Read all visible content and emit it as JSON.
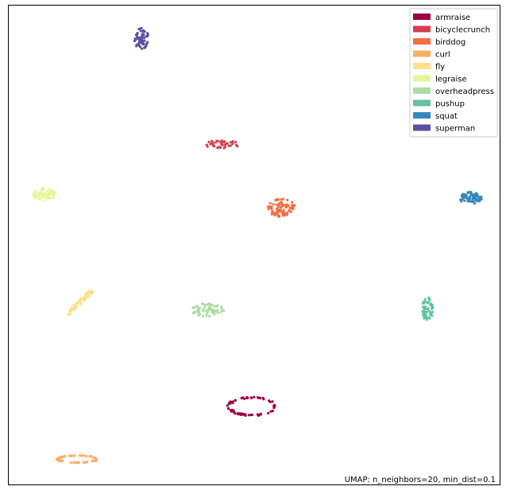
{
  "chart_data": {
    "type": "scatter",
    "title": "",
    "xlabel": "",
    "ylabel": "",
    "xlim": [
      0,
      100
    ],
    "ylim": [
      0,
      100
    ],
    "grid": false,
    "ticks": false,
    "legend_position": "top-right",
    "annotation": "UMAP: n_neighbors=20, min_dist=0.1",
    "series": [
      {
        "name": "armraise",
        "color": "#9e0142",
        "clusters": [
          {
            "shape": "ring",
            "cx": 49.5,
            "cy": 16.3,
            "rx": 5.0,
            "ry": 2.0,
            "n": 70
          }
        ]
      },
      {
        "name": "bicyclecrunch",
        "color": "#d53e4f",
        "clusters": [
          {
            "shape": "blob",
            "cx": 43.5,
            "cy": 71.0,
            "rx": 3.5,
            "ry": 0.9,
            "n": 40
          }
        ]
      },
      {
        "name": "birddog",
        "color": "#f46d43",
        "clusters": [
          {
            "shape": "blob",
            "cx": 55.5,
            "cy": 57.8,
            "rx": 2.8,
            "ry": 1.9,
            "n": 80
          }
        ]
      },
      {
        "name": "curl",
        "color": "#fdae61",
        "clusters": [
          {
            "shape": "ring",
            "cx": 14.0,
            "cy": 5.3,
            "rx": 4.3,
            "ry": 0.8,
            "n": 60
          }
        ]
      },
      {
        "name": "fly",
        "color": "#fee08b",
        "clusters": [
          {
            "shape": "line",
            "cx": 14.2,
            "cy": 37.8,
            "rx": 2.7,
            "ry": 2.7,
            "n": 60
          }
        ]
      },
      {
        "name": "legraise",
        "color": "#e6f598",
        "clusters": [
          {
            "shape": "blob",
            "cx": 7.2,
            "cy": 60.6,
            "rx": 2.4,
            "ry": 1.4,
            "n": 60
          }
        ]
      },
      {
        "name": "overheadpress",
        "color": "#abdda4",
        "clusters": [
          {
            "shape": "blob",
            "cx": 40.4,
            "cy": 36.5,
            "rx": 3.5,
            "ry": 1.4,
            "n": 60
          }
        ]
      },
      {
        "name": "pushup",
        "color": "#66c2a5",
        "clusters": [
          {
            "shape": "blob",
            "cx": 85.3,
            "cy": 36.5,
            "rx": 1.2,
            "ry": 2.6,
            "n": 60
          }
        ]
      },
      {
        "name": "squat",
        "color": "#3288bd",
        "clusters": [
          {
            "shape": "blob",
            "cx": 94.1,
            "cy": 59.8,
            "rx": 2.3,
            "ry": 1.3,
            "n": 70
          }
        ]
      },
      {
        "name": "superman",
        "color": "#5e4fa2",
        "clusters": [
          {
            "shape": "blob",
            "cx": 27.0,
            "cy": 93.2,
            "rx": 1.5,
            "ry": 2.3,
            "n": 60
          }
        ]
      }
    ]
  }
}
